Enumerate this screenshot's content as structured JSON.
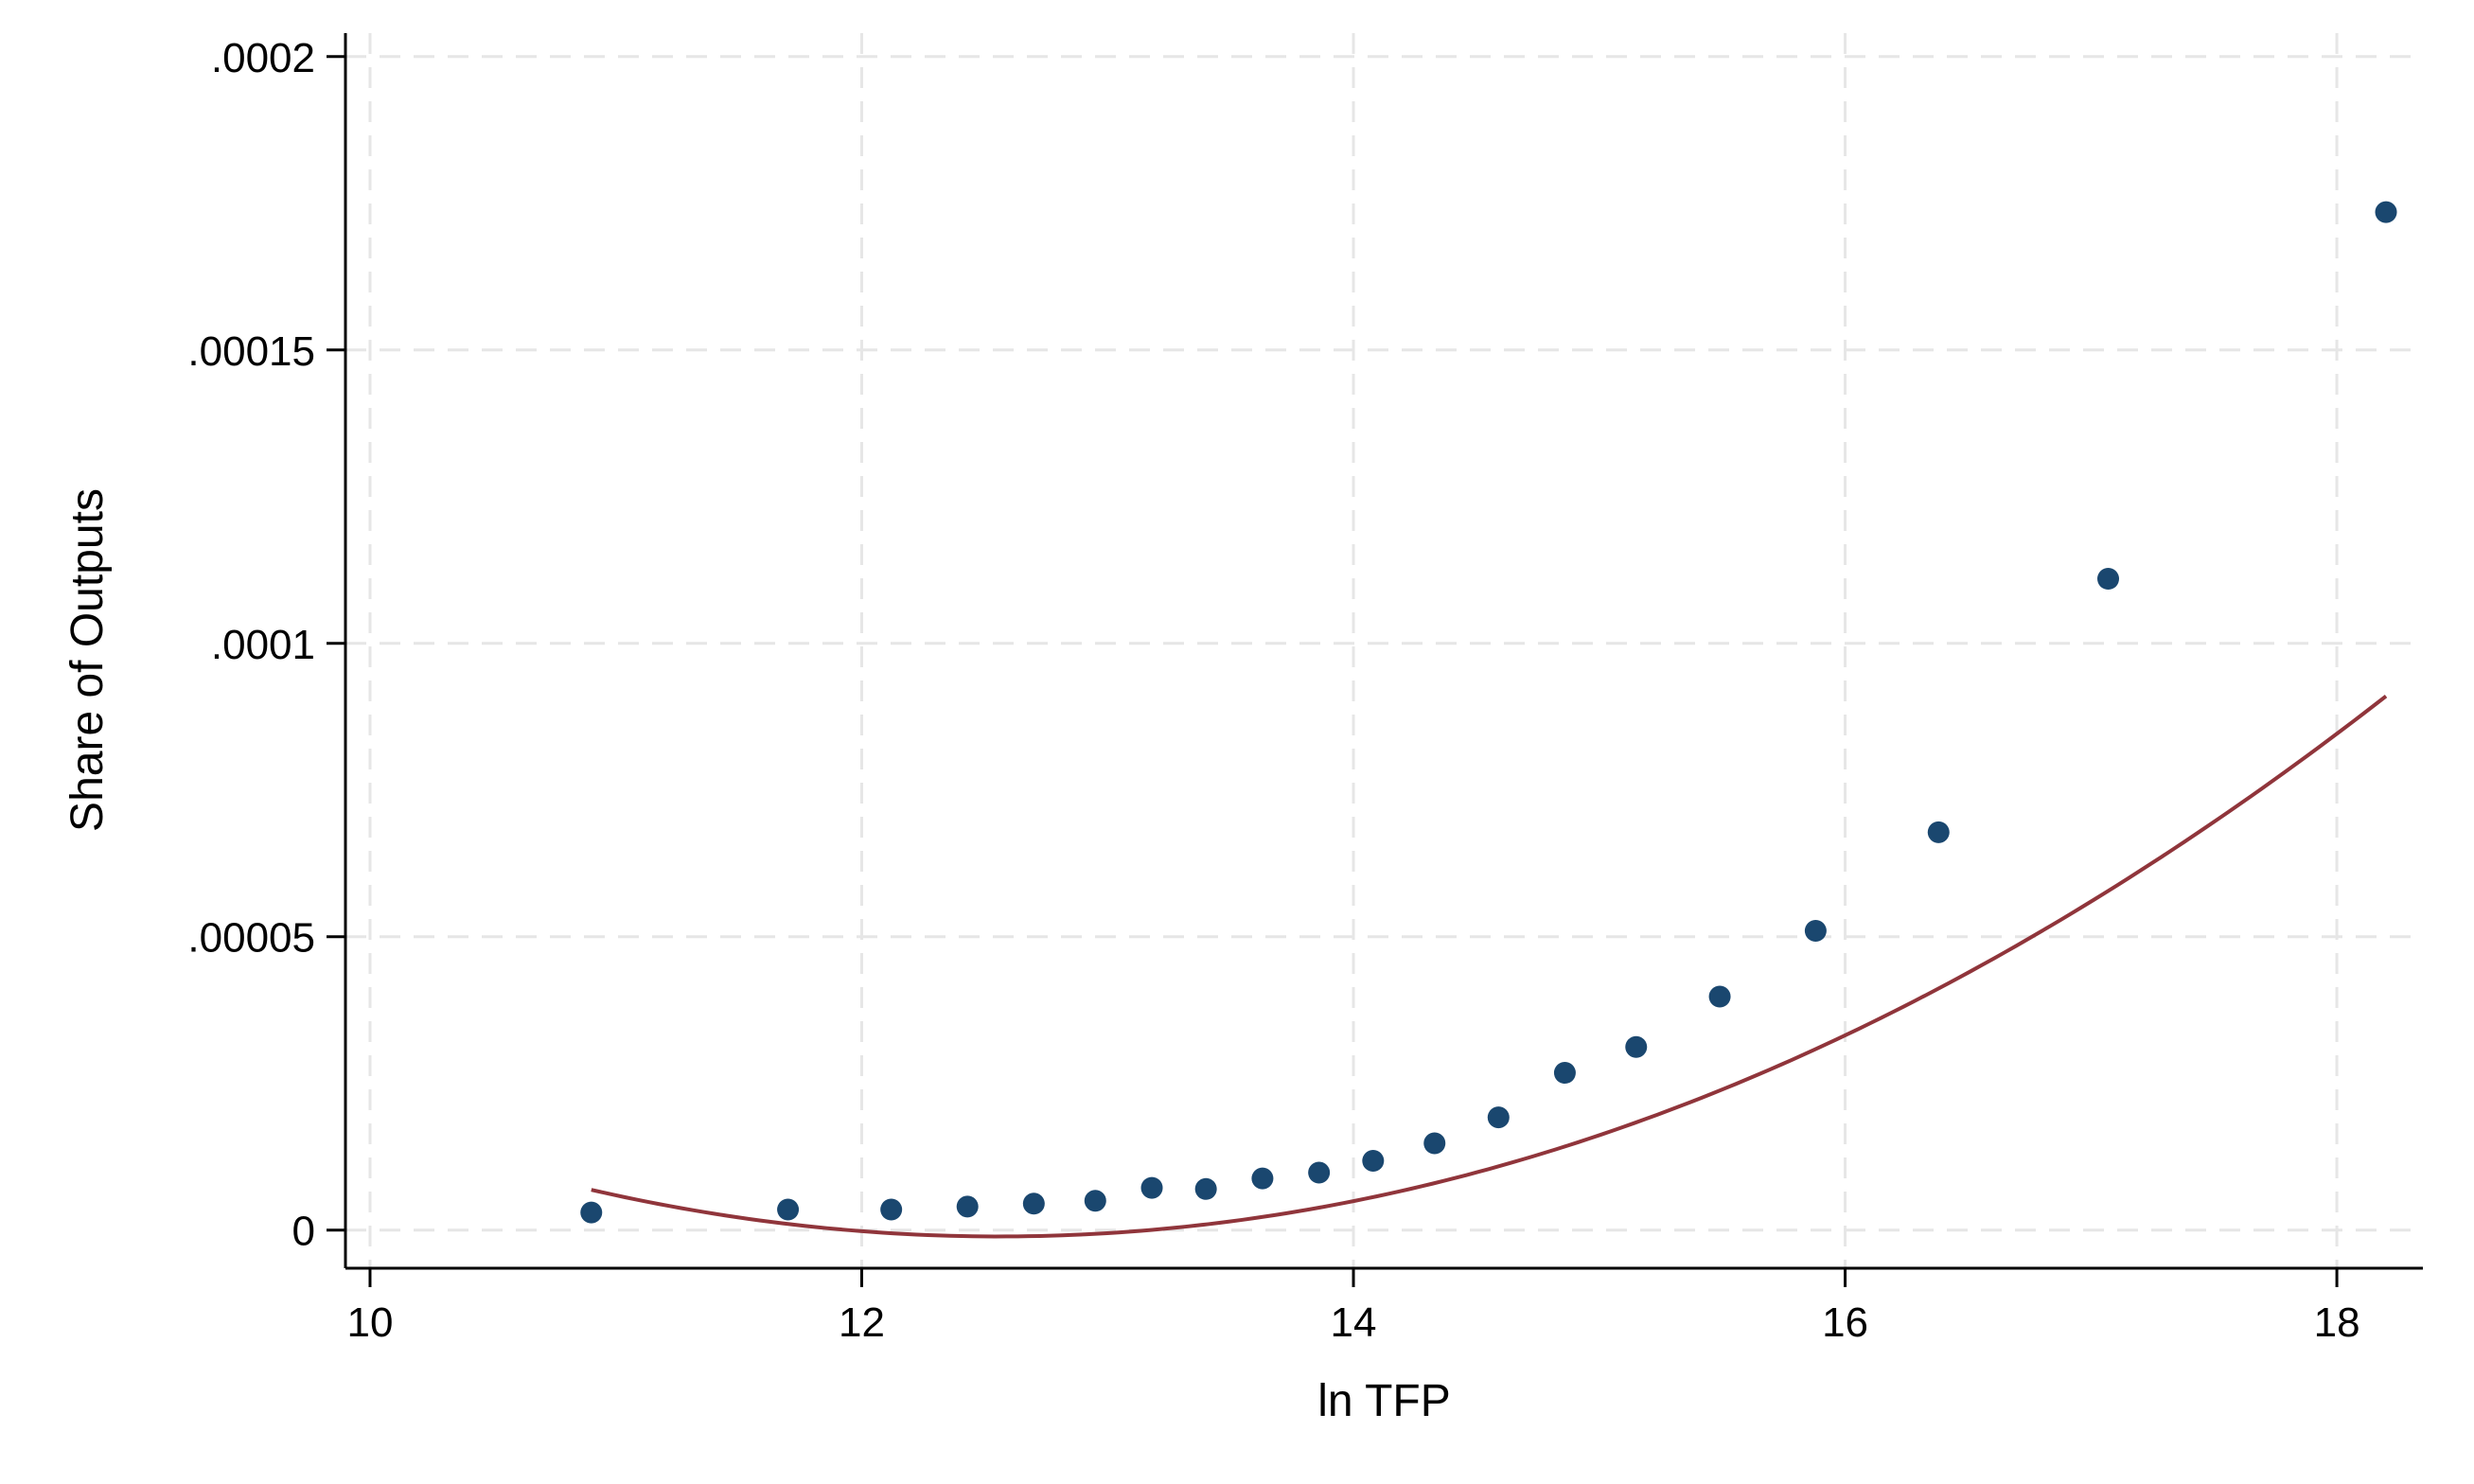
{
  "chart_data": {
    "type": "scatter",
    "xlabel": "ln TFP",
    "ylabel": "Share of Outputs",
    "xlim": [
      9.9,
      18.35
    ],
    "ylim": [
      -6.5e-06,
      0.000204
    ],
    "x_ticks": [
      10,
      12,
      14,
      16,
      18
    ],
    "x_tick_labels": [
      "10",
      "12",
      "14",
      "16",
      "18"
    ],
    "y_ticks": [
      0,
      5e-05,
      0.0001,
      0.00015,
      0.0002
    ],
    "y_tick_labels": [
      "0",
      ".00005",
      ".0001",
      ".00015",
      ".0002"
    ],
    "grid": true,
    "legend": "none",
    "series": [
      {
        "type": "scatter",
        "color": "#1a476f",
        "x": [
          10.9,
          11.7,
          12.12,
          12.43,
          12.7,
          12.95,
          13.18,
          13.4,
          13.63,
          13.86,
          14.08,
          14.33,
          14.59,
          14.86,
          15.15,
          15.49,
          15.88,
          16.38,
          17.07,
          18.2
        ],
        "y": [
          3e-06,
          3.5e-06,
          3.5e-06,
          4e-06,
          4.5e-06,
          5e-06,
          7.2e-06,
          7e-06,
          8.8e-06,
          9.8e-06,
          1.18e-05,
          1.48e-05,
          1.92e-05,
          2.68e-05,
          3.12e-05,
          3.98e-05,
          5.1e-05,
          6.78e-05,
          0.000111,
          0.0001735
        ]
      },
      {
        "type": "line",
        "color": "#90353b",
        "fit": "quadratic",
        "x_range": [
          10.9,
          18.2
        ],
        "coefficients": [
          0.000455,
          -7.264e-05,
          2.8923e-06
        ]
      }
    ]
  }
}
